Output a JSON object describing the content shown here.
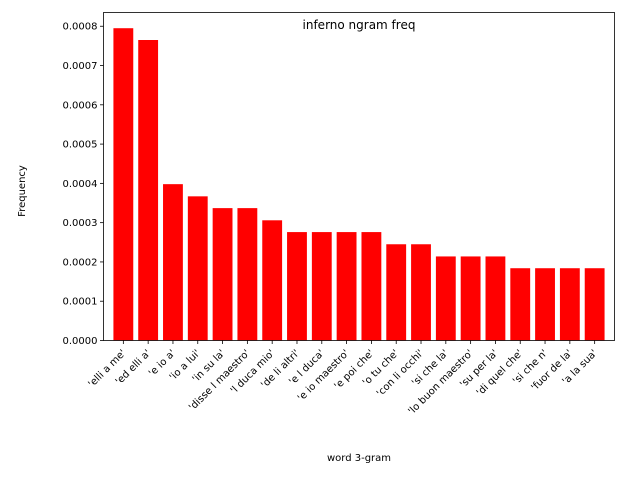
{
  "chart_data": {
    "type": "bar",
    "title": "inferno ngram freq",
    "xlabel": "word 3-gram",
    "ylabel": "Frequency",
    "categories": [
      "'elli a me'",
      "'ed elli a'",
      "'e io a'",
      "'io a lui'",
      "'in su la'",
      "'disse l maestro'",
      "'l duca mio'",
      "'de li altri'",
      "'e l duca'",
      "'e io maestro'",
      "'e poi che'",
      "'o tu che'",
      "'con li occhi'",
      "'si che la'",
      "'lo buon maestro'",
      "'su per la'",
      "'di quel che'",
      "'si che n'",
      "'fuor de la'",
      "'a la sua'"
    ],
    "values": [
      0.000795,
      0.000765,
      0.000398,
      0.000367,
      0.000337,
      0.000337,
      0.000306,
      0.000276,
      0.000276,
      0.000276,
      0.000276,
      0.000245,
      0.000245,
      0.000214,
      0.000214,
      0.000214,
      0.000184,
      0.000184,
      0.000184,
      0.000184
    ],
    "ylim": [
      0,
      0.000835
    ],
    "yticks": [
      "0.0000",
      "0.0001",
      "0.0002",
      "0.0003",
      "0.0004",
      "0.0005",
      "0.0006",
      "0.0007",
      "0.0008"
    ],
    "bar_color": "#ff0000",
    "grid": false,
    "legend": "none"
  }
}
